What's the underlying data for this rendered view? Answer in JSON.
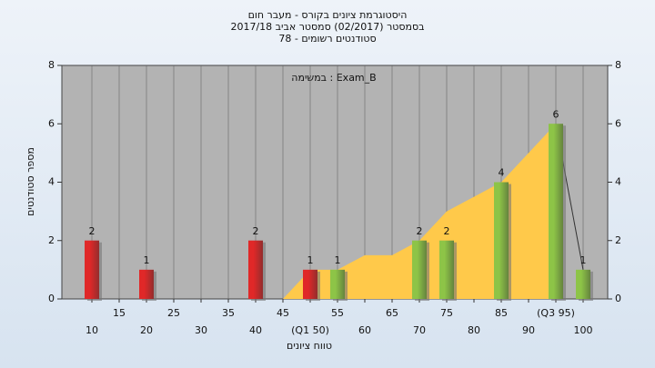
{
  "chart_data": {
    "type": "histogram",
    "title": "היסטוגרמת ציונים בקורס - מעבר חום",
    "subtitle": "בסמסטר  (02/2017)  סמסטר אביב 2017/18",
    "subtitle2": "סטודנטים רשומים - 78",
    "annotation": "במשימה : Exam_B",
    "y_label": "מספר סטודנטים",
    "x_label": "טווח ציונים",
    "xlim": [
      4.5,
      104.5
    ],
    "ylim": [
      0,
      8
    ],
    "y2lim": [
      0,
      8
    ],
    "xticks": [
      10,
      15,
      20,
      25,
      30,
      35,
      40,
      45,
      {
        "value": 50,
        "label": "(Q1 50)"
      },
      55,
      60,
      65,
      70,
      75,
      80,
      85,
      90,
      {
        "value": 95,
        "label": "(Q3 95)"
      },
      100
    ],
    "yticks": [
      0,
      2,
      4,
      6,
      8
    ],
    "y2ticks": [
      0,
      2,
      4,
      6,
      8
    ],
    "grid": true,
    "bars": {
      "x": [
        10,
        20,
        40,
        50,
        55,
        70,
        75,
        85,
        95,
        100
      ],
      "values": [
        2,
        1,
        2,
        1,
        1,
        2,
        2,
        4,
        6,
        1
      ],
      "colors": [
        "#e02828",
        "#e02828",
        "#e02828",
        "#e02828",
        "#8dc447",
        "#8dc447",
        "#8dc447",
        "#8dc447",
        "#8dc447",
        "#8dc447"
      ]
    },
    "area": {
      "x": [
        45,
        50,
        55,
        60,
        65,
        70,
        75,
        80,
        85,
        90,
        95
      ],
      "values": [
        0,
        1,
        1,
        1.5,
        1.5,
        2,
        3,
        3.5,
        4,
        5,
        6
      ],
      "color": "#ffc94a"
    },
    "line": {
      "x": [
        95,
        100
      ],
      "values": [
        6,
        1
      ],
      "color": "#333333"
    }
  }
}
